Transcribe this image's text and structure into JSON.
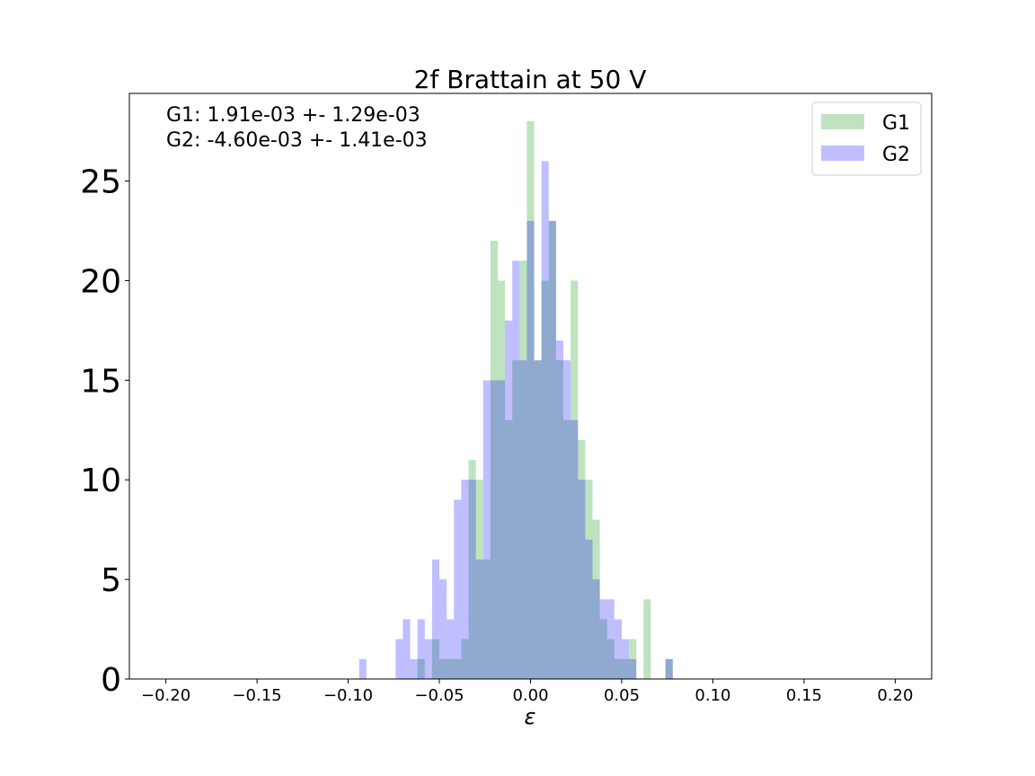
{
  "chart_data": {
    "type": "bar",
    "subtype": "overlaid-histogram",
    "title": "2f Brattain at 50 V",
    "xlabel": "ε",
    "ylabel": "",
    "xlim": [
      -0.22,
      0.22
    ],
    "ylim": [
      0,
      29.4
    ],
    "xticks": [
      -0.2,
      -0.15,
      -0.1,
      -0.05,
      0.0,
      0.05,
      0.1,
      0.15,
      0.2
    ],
    "xtick_labels": [
      "−0.20",
      "−0.15",
      "−0.10",
      "−0.05",
      "0.00",
      "0.05",
      "0.10",
      "0.15",
      "0.20"
    ],
    "yticks": [
      0,
      5,
      10,
      15,
      20,
      25
    ],
    "ytick_labels": [
      "0",
      "5",
      "10",
      "15",
      "20",
      "25"
    ],
    "bin_width": 0.004,
    "annotations": [
      "G1: 1.91e-03 +- 1.29e-03",
      "G2: -4.60e-03 +- 1.41e-03"
    ],
    "legend_position": "top-right",
    "grid": false,
    "series": [
      {
        "name": "G1",
        "color": "#2ca02c",
        "alpha": 0.3,
        "bin_starts": [
          -0.062,
          -0.058,
          -0.054,
          -0.05,
          -0.046,
          -0.042,
          -0.038,
          -0.034,
          -0.03,
          -0.026,
          -0.022,
          -0.018,
          -0.014,
          -0.01,
          -0.006,
          -0.002,
          0.002,
          0.006,
          0.01,
          0.014,
          0.018,
          0.022,
          0.026,
          0.03,
          0.034,
          0.038,
          0.042,
          0.046,
          0.05,
          0.054,
          0.058,
          0.062,
          0.066,
          0.07,
          0.074
        ],
        "counts": [
          1,
          0,
          2,
          1,
          1,
          1,
          2,
          11,
          10,
          6,
          22,
          20,
          13,
          16,
          21,
          28,
          16,
          20,
          23,
          16,
          13,
          20,
          12,
          10,
          8,
          3,
          2,
          1,
          1,
          2,
          0,
          4,
          0,
          0,
          1
        ]
      },
      {
        "name": "G2",
        "color": "#0000ff",
        "alpha": 0.25,
        "bin_starts": [
          -0.094,
          -0.09,
          -0.086,
          -0.082,
          -0.078,
          -0.074,
          -0.07,
          -0.066,
          -0.062,
          -0.058,
          -0.054,
          -0.05,
          -0.046,
          -0.042,
          -0.038,
          -0.034,
          -0.03,
          -0.026,
          -0.022,
          -0.018,
          -0.014,
          -0.01,
          -0.006,
          -0.002,
          0.002,
          0.006,
          0.01,
          0.014,
          0.018,
          0.022,
          0.026,
          0.03,
          0.034,
          0.038,
          0.042,
          0.046,
          0.05,
          0.054,
          0.058,
          0.062,
          0.066,
          0.07,
          0.074
        ],
        "counts": [
          1,
          0,
          0,
          0,
          0,
          2,
          3,
          1,
          3,
          2,
          6,
          5,
          3,
          9,
          10,
          10,
          6,
          15,
          15,
          15,
          18,
          21,
          16,
          23,
          16,
          26,
          23,
          17,
          16,
          13,
          10,
          7,
          5,
          4,
          4,
          3,
          2,
          1,
          0,
          0,
          0,
          0,
          1
        ]
      }
    ]
  }
}
